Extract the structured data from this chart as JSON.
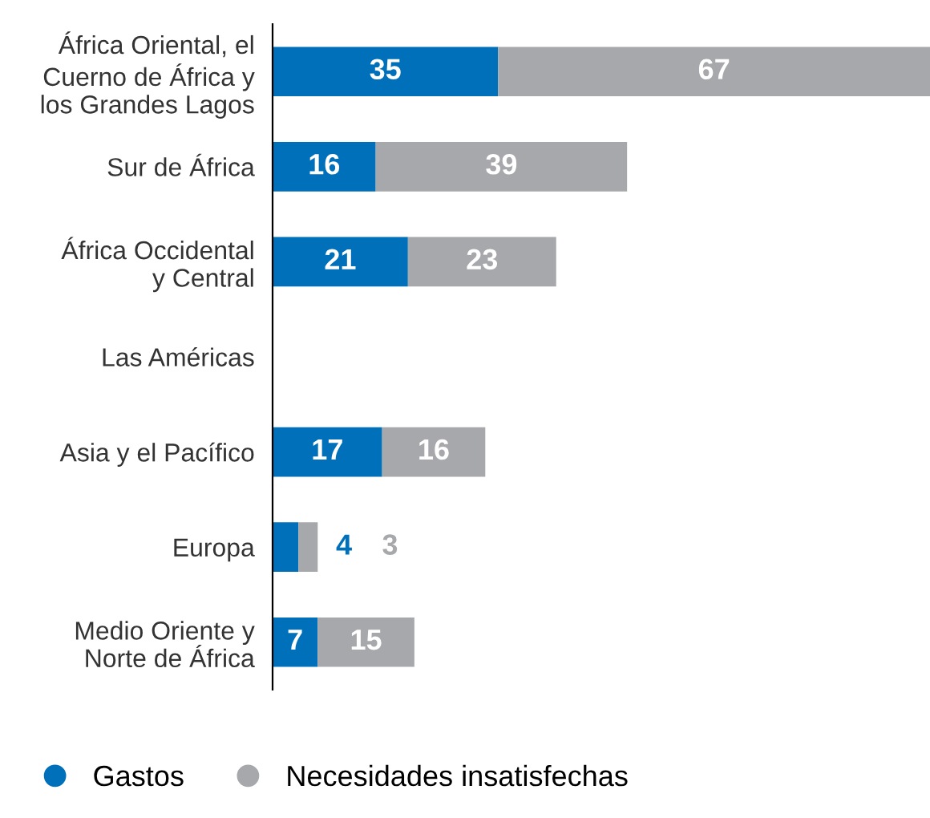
{
  "chart_data": {
    "type": "bar",
    "orientation": "horizontal",
    "stacked": true,
    "data_labels": true,
    "legend": "bottom left",
    "grid": false,
    "categories": [
      "África Oriental, el\nCuerno de África y\nlos Grandes Lagos",
      "Sur de África",
      "África Occidental\ny Central",
      "Las Américas",
      "Asia y el Pacífico",
      "Europa",
      "Medio Oriente y\nNorte de África"
    ],
    "series": [
      {
        "name": "Gastos",
        "color": "#0070bb",
        "values": [
          35,
          16,
          21,
          null,
          17,
          4,
          7
        ]
      },
      {
        "name": "Necesidades insatisfechas",
        "color": "#a7a8ab",
        "values": [
          67,
          39,
          23,
          null,
          16,
          3,
          15
        ]
      }
    ]
  }
}
